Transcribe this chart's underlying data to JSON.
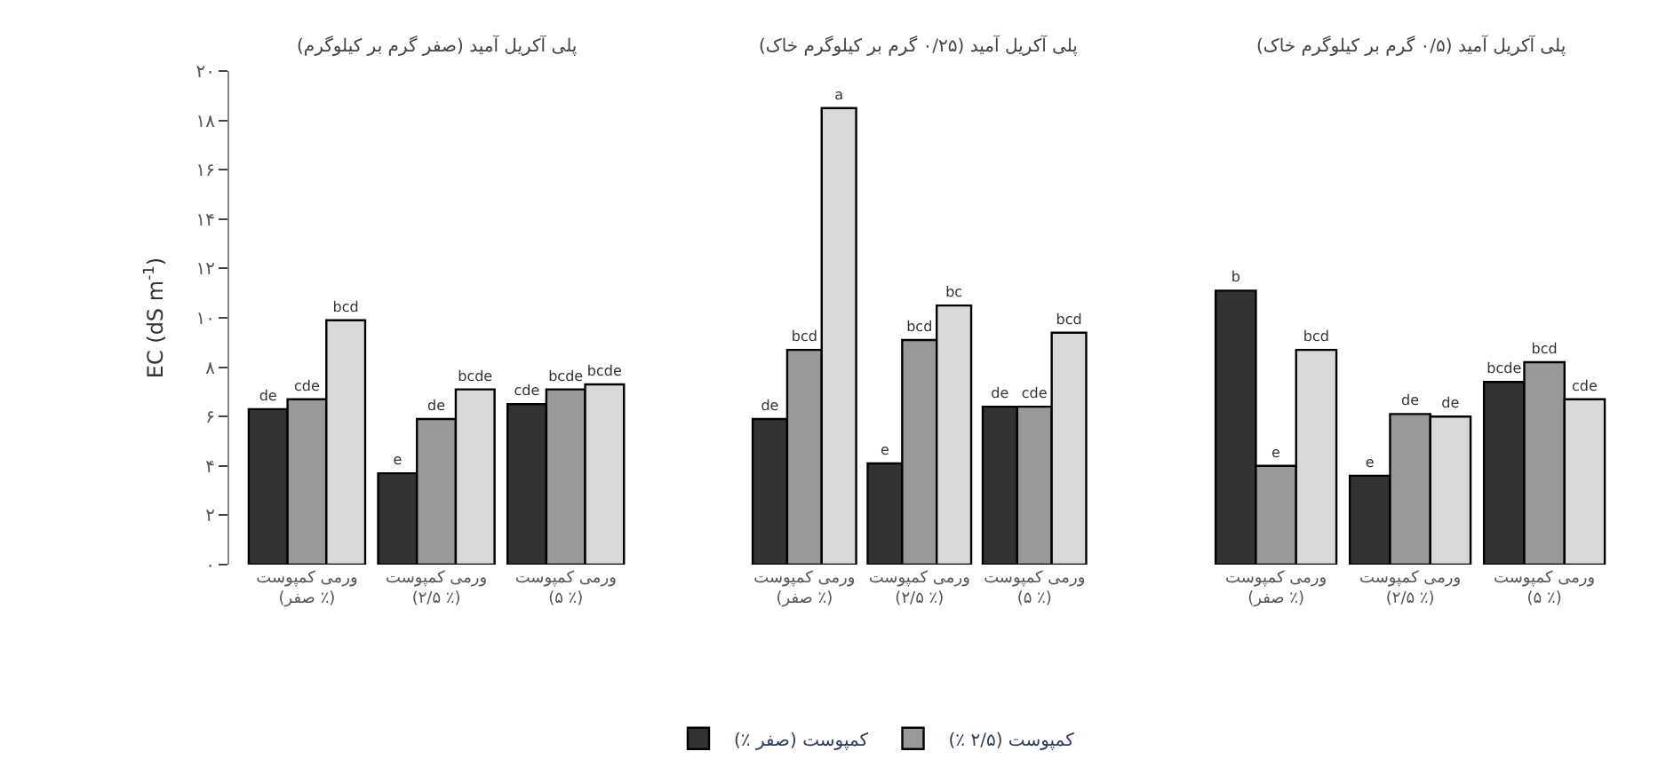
{
  "chart_data": [
    {
      "type": "bar",
      "title": "پلی آکریل آمید (صفر گرم بر کیلوگرم)",
      "ylabel": "EC (dS m$^{-1}$)",
      "categories": [
        "ورمی کمپوست\n(صفر ٪)",
        "ورمی کمپوست\n(۲/۵ ٪)",
        "ورمی کمپوست\n(۵ ٪)"
      ],
      "ylim": [
        0,
        20
      ],
      "yticks": [
        {
          "value": 0,
          "label": "۰"
        },
        {
          "value": 2,
          "label": "۲"
        },
        {
          "value": 4,
          "label": "۴"
        },
        {
          "value": 6,
          "label": "۶"
        },
        {
          "value": 8,
          "label": "۸"
        },
        {
          "value": 10,
          "label": "۱۰"
        },
        {
          "value": 12,
          "label": "۱۲"
        },
        {
          "value": 14,
          "label": "۱۴"
        },
        {
          "value": 16,
          "label": "۱۶"
        },
        {
          "value": 18,
          "label": "۱۸"
        },
        {
          "value": 20,
          "label": "۲۰"
        }
      ],
      "legend": "bottom",
      "series": [
        {
          "name": "کمپوست (صفر ٪)",
          "color": "#333333",
          "values": [
            6.3,
            3.7,
            6.5
          ],
          "value_labels": [
            "de",
            "e",
            "cde"
          ]
        },
        {
          "name": "کمپوست (۲/۵ ٪)",
          "color": "#999999",
          "values": [
            6.7,
            5.9,
            7.1
          ],
          "value_labels": [
            "cde",
            "de",
            "bcde"
          ]
        },
        {
          "color": "#d9d9d9",
          "values": [
            9.9,
            7.1,
            7.3
          ],
          "value_labels": [
            "bcd",
            "bcde",
            "bcde"
          ]
        }
      ]
    },
    {
      "type": "bar",
      "title": "پلی آکریل آمید (۰/۲۵ گرم بر کیلوگرم خاک)",
      "categories": [
        "ورمی کمپوست\n(صفر ٪)",
        "ورمی کمپوست\n(۲/۵ ٪)",
        "ورمی کمپوست\n(۵ ٪)"
      ],
      "ylim": [
        0,
        20
      ],
      "tick_labels": "x",
      "series": [
        {
          "color": "#333333",
          "values": [
            5.9,
            4.1,
            6.4
          ],
          "value_labels": [
            "de",
            "e",
            "de"
          ]
        },
        {
          "color": "#999999",
          "values": [
            8.7,
            9.1,
            6.4
          ],
          "value_labels": [
            "bcd",
            "bcd",
            "cde"
          ]
        },
        {
          "color": "#d9d9d9",
          "values": [
            18.5,
            10.5,
            9.4
          ],
          "value_labels": [
            "a",
            "bc",
            "bcd"
          ]
        }
      ]
    },
    {
      "type": "bar",
      "title": "پلی آکریل آمید (۰/۵ گرم بر کیلوگرم خاک)",
      "categories": [
        "ورمی کمپوست\n(صفر ٪)",
        "ورمی کمپوست\n(۲/۵ ٪)",
        "ورمی کمپوست\n(۵ ٪)"
      ],
      "ylim": [
        0,
        20
      ],
      "tick_labels": "x",
      "series": [
        {
          "color": "#333333",
          "values": [
            11.1,
            3.6,
            7.4
          ],
          "value_labels": [
            "b",
            "e",
            "bcde"
          ]
        },
        {
          "color": "#999999",
          "values": [
            4.0,
            6.1,
            8.2
          ],
          "value_labels": [
            "e",
            "de",
            "bcd"
          ]
        },
        {
          "color": "#d9d9d9",
          "values": [
            8.7,
            6.0,
            6.7
          ],
          "value_labels": [
            "bcd",
            "de",
            "cde"
          ]
        }
      ]
    }
  ]
}
